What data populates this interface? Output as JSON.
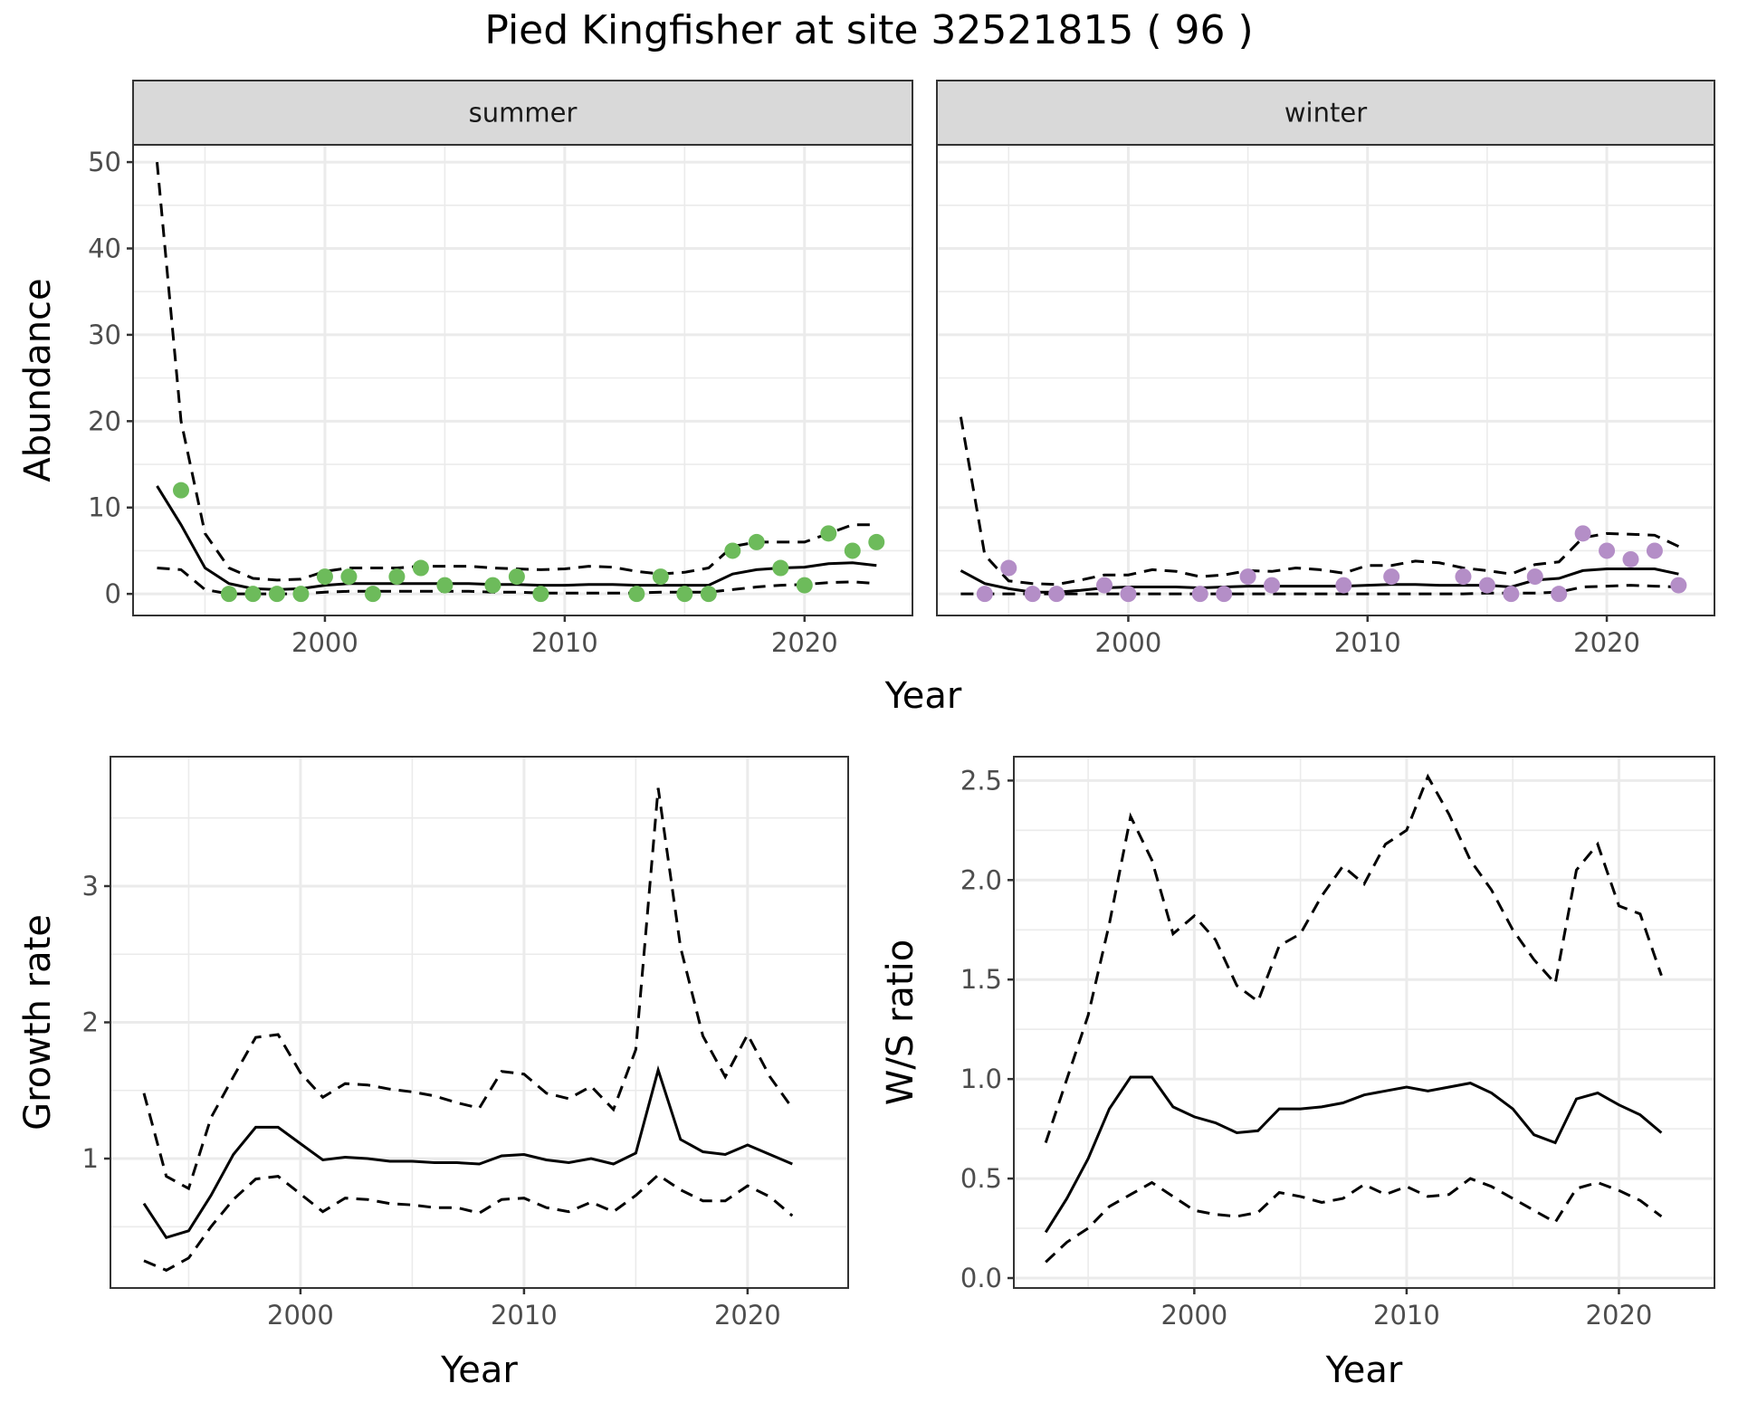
{
  "title": "Pied Kingfisher at site 32521815 ( 96 )",
  "chart_data": [
    {
      "type": "scatter",
      "panel": "summer",
      "strip_label": "summer",
      "xlabel": "Year",
      "ylabel": "Abundance",
      "xlim": [
        1992,
        2024.5
      ],
      "ylim": [
        -2.5,
        52
      ],
      "xticks": [
        2000,
        2010,
        2020
      ],
      "yticks": [
        0,
        10,
        20,
        30,
        40,
        50
      ],
      "point_color": "#6dbb5b",
      "points": {
        "x": [
          1994,
          1996,
          1997,
          1998,
          1999,
          2000,
          2001,
          2002,
          2003,
          2004,
          2005,
          2007,
          2008,
          2009,
          2013,
          2014,
          2015,
          2016,
          2017,
          2018,
          2019,
          2020,
          2021,
          2022,
          2023
        ],
        "y": [
          12,
          0,
          0,
          0,
          0,
          2,
          2,
          0,
          2,
          3,
          1,
          1,
          2,
          0,
          0,
          2,
          0,
          0,
          5,
          6,
          3,
          1,
          7,
          5,
          6
        ]
      },
      "fit": {
        "x": [
          1993,
          1994,
          1995,
          1996,
          1997,
          1998,
          1999,
          2000,
          2001,
          2002,
          2003,
          2004,
          2005,
          2006,
          2007,
          2008,
          2009,
          2010,
          2011,
          2012,
          2013,
          2014,
          2015,
          2016,
          2017,
          2018,
          2019,
          2020,
          2021,
          2022,
          2023
        ],
        "mean": [
          12.5,
          8,
          3,
          1.2,
          0.6,
          0.5,
          0.6,
          1,
          1.2,
          1.2,
          1.2,
          1.2,
          1.2,
          1.2,
          1.1,
          1.1,
          1.0,
          1.0,
          1.1,
          1.1,
          1.0,
          1.0,
          1.0,
          1.0,
          2.3,
          2.8,
          3.0,
          3.1,
          3.5,
          3.6,
          3.3
        ],
        "lower": [
          3,
          2.8,
          0.5,
          0,
          0,
          0,
          0,
          0.2,
          0.3,
          0.3,
          0.3,
          0.3,
          0.3,
          0.3,
          0.2,
          0.2,
          0.1,
          0.1,
          0.1,
          0.1,
          0.1,
          0.2,
          0.2,
          0.2,
          0.5,
          0.8,
          1.0,
          1.1,
          1.3,
          1.4,
          1.2
        ],
        "upper": [
          50,
          20,
          7,
          3,
          1.8,
          1.6,
          1.7,
          2.6,
          3,
          3,
          3,
          3.2,
          3.2,
          3.2,
          3,
          2.9,
          2.8,
          2.9,
          3.2,
          3.1,
          2.6,
          2.3,
          2.5,
          3,
          5.5,
          6,
          6,
          6,
          7,
          8,
          8
        ]
      }
    },
    {
      "type": "scatter",
      "panel": "winter",
      "strip_label": "winter",
      "xlabel": "Year",
      "ylabel": "Abundance",
      "xlim": [
        1992,
        2024.5
      ],
      "ylim": [
        -2.5,
        52
      ],
      "xticks": [
        2000,
        2010,
        2020
      ],
      "yticks": [
        0,
        10,
        20,
        30,
        40,
        50
      ],
      "point_color": "#b48ec7",
      "points": {
        "x": [
          1994,
          1995,
          1996,
          1997,
          1999,
          2000,
          2003,
          2004,
          2005,
          2006,
          2009,
          2011,
          2014,
          2015,
          2016,
          2017,
          2018,
          2019,
          2020,
          2021,
          2022,
          2023
        ],
        "y": [
          0,
          3,
          0,
          0,
          1,
          0,
          0,
          0,
          2,
          1,
          1,
          2,
          2,
          1,
          0,
          2,
          0,
          7,
          5,
          4,
          5,
          1
        ]
      },
      "fit": {
        "x": [
          1993,
          1994,
          1995,
          1996,
          1997,
          1998,
          1999,
          2000,
          2001,
          2002,
          2003,
          2004,
          2005,
          2006,
          2007,
          2008,
          2009,
          2010,
          2011,
          2012,
          2013,
          2014,
          2015,
          2016,
          2017,
          2018,
          2019,
          2020,
          2021,
          2022,
          2023
        ],
        "mean": [
          2.7,
          1.2,
          0.6,
          0.2,
          0.2,
          0.4,
          0.7,
          0.8,
          0.8,
          0.8,
          0.7,
          0.8,
          0.9,
          0.9,
          0.9,
          0.9,
          0.9,
          1.0,
          1.1,
          1.1,
          1.0,
          1.0,
          1.0,
          0.8,
          1.6,
          1.8,
          2.7,
          2.9,
          2.9,
          2.9,
          2.3
        ],
        "lower": [
          0,
          0,
          0,
          0,
          0,
          0,
          0,
          0,
          0,
          0,
          0,
          0,
          0,
          0,
          0,
          0,
          0,
          0,
          0,
          0,
          0,
          0,
          0.1,
          0.1,
          0.1,
          0.2,
          0.8,
          0.9,
          1.0,
          0.9,
          0.8
        ],
        "upper": [
          20.5,
          4.5,
          1.5,
          1.2,
          1.1,
          1.6,
          2.2,
          2.2,
          2.8,
          2.6,
          2,
          2.2,
          2.7,
          2.6,
          3,
          2.8,
          2.4,
          3.3,
          3.3,
          3.8,
          3.6,
          3,
          2.7,
          2.3,
          3.4,
          3.7,
          6.5,
          7,
          6.9,
          6.8,
          5.5
        ]
      }
    },
    {
      "type": "line",
      "panel": "growth",
      "xlabel": "Year",
      "ylabel": "Growth rate",
      "xlim": [
        1991.5,
        2024.5
      ],
      "ylim": [
        0.05,
        3.95
      ],
      "xticks": [
        2000,
        2010,
        2020
      ],
      "yticks": [
        1,
        2,
        3
      ],
      "x": [
        1993,
        1994,
        1995,
        1996,
        1997,
        1998,
        1999,
        2000,
        2001,
        2002,
        2003,
        2004,
        2005,
        2006,
        2007,
        2008,
        2009,
        2010,
        2011,
        2012,
        2013,
        2014,
        2015,
        2016,
        2017,
        2018,
        2019,
        2020,
        2021,
        2022
      ],
      "mean": [
        0.67,
        0.42,
        0.47,
        0.73,
        1.03,
        1.23,
        1.23,
        1.11,
        0.99,
        1.01,
        1.0,
        0.98,
        0.98,
        0.97,
        0.97,
        0.96,
        1.02,
        1.03,
        0.99,
        0.97,
        1.0,
        0.96,
        1.04,
        1.65,
        1.14,
        1.05,
        1.03,
        1.1,
        1.03,
        0.96
      ],
      "lower": [
        0.25,
        0.18,
        0.27,
        0.5,
        0.7,
        0.85,
        0.87,
        0.74,
        0.61,
        0.71,
        0.7,
        0.67,
        0.66,
        0.64,
        0.64,
        0.6,
        0.7,
        0.71,
        0.64,
        0.61,
        0.68,
        0.61,
        0.73,
        0.88,
        0.77,
        0.69,
        0.69,
        0.8,
        0.72,
        0.58
      ],
      "upper": [
        1.48,
        0.87,
        0.78,
        1.3,
        1.6,
        1.89,
        1.91,
        1.63,
        1.45,
        1.55,
        1.54,
        1.51,
        1.49,
        1.46,
        1.41,
        1.37,
        1.64,
        1.62,
        1.48,
        1.44,
        1.53,
        1.36,
        1.8,
        3.72,
        2.55,
        1.9,
        1.6,
        1.91,
        1.6,
        1.37
      ]
    },
    {
      "type": "line",
      "panel": "ratio",
      "xlabel": "Year",
      "ylabel": "W/S ratio",
      "xlim": [
        1991.5,
        2024.5
      ],
      "ylim": [
        -0.05,
        2.62
      ],
      "xticks": [
        2000,
        2010,
        2020
      ],
      "yticks": [
        0.0,
        0.5,
        1.0,
        1.5,
        2.0,
        2.5
      ],
      "ytick_labels": [
        "0.0",
        "0.5",
        "1.0",
        "1.5",
        "2.0",
        "2.5"
      ],
      "x": [
        1993,
        1994,
        1995,
        1996,
        1997,
        1998,
        1999,
        2000,
        2001,
        2002,
        2003,
        2004,
        2005,
        2006,
        2007,
        2008,
        2009,
        2010,
        2011,
        2012,
        2013,
        2014,
        2015,
        2016,
        2017,
        2018,
        2019,
        2020,
        2021,
        2022
      ],
      "mean": [
        0.23,
        0.4,
        0.6,
        0.85,
        1.01,
        1.01,
        0.86,
        0.81,
        0.78,
        0.73,
        0.74,
        0.85,
        0.85,
        0.86,
        0.88,
        0.92,
        0.94,
        0.96,
        0.94,
        0.96,
        0.98,
        0.93,
        0.85,
        0.72,
        0.68,
        0.9,
        0.93,
        0.87,
        0.82,
        0.73
      ],
      "lower": [
        0.08,
        0.18,
        0.25,
        0.36,
        0.42,
        0.48,
        0.41,
        0.34,
        0.32,
        0.31,
        0.33,
        0.43,
        0.41,
        0.38,
        0.4,
        0.47,
        0.42,
        0.46,
        0.41,
        0.42,
        0.5,
        0.46,
        0.4,
        0.34,
        0.28,
        0.45,
        0.48,
        0.44,
        0.39,
        0.31
      ],
      "upper": [
        0.68,
        1.0,
        1.32,
        1.78,
        2.32,
        2.1,
        1.73,
        1.82,
        1.7,
        1.47,
        1.39,
        1.67,
        1.73,
        1.92,
        2.07,
        1.98,
        2.18,
        2.25,
        2.52,
        2.33,
        2.1,
        1.95,
        1.75,
        1.6,
        1.48,
        2.05,
        2.18,
        1.87,
        1.83,
        1.52
      ]
    }
  ]
}
